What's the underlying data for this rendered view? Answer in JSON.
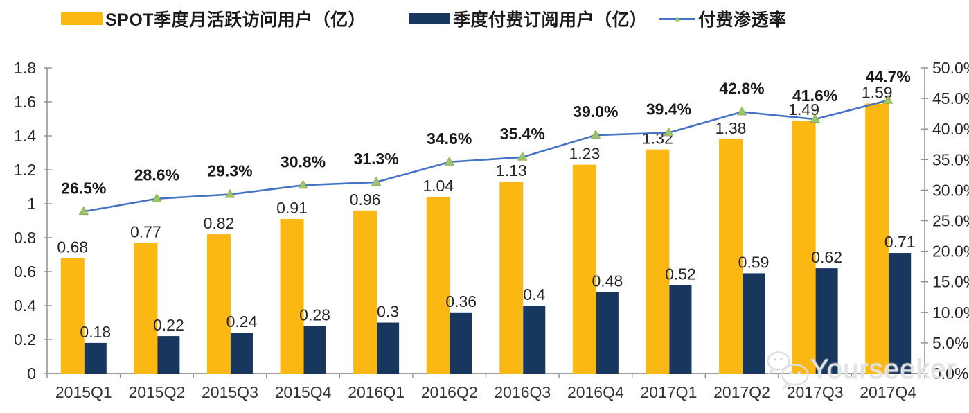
{
  "legend": [
    {
      "label": "SPOT季度月活跃访问用户（亿）",
      "color": "#FBB813",
      "swatch": "bar"
    },
    {
      "label": "季度付费订阅用户（亿）",
      "color": "#17375E",
      "swatch": "bar"
    },
    {
      "label": "付费渗透率",
      "color": "#4472C4",
      "marker_color": "#9DC36B",
      "swatch": "line"
    }
  ],
  "chart_data": {
    "type": "bar",
    "subtype": "combo-bar-line",
    "grid": false,
    "legend_position": "top",
    "categories": [
      "2015Q1",
      "2015Q2",
      "2015Q3",
      "2015Q4",
      "2016Q1",
      "2016Q2",
      "2016Q3",
      "2016Q4",
      "2017Q1",
      "2017Q2",
      "2017Q3",
      "2017Q4"
    ],
    "series": [
      {
        "name": "SPOT季度月活跃访问用户（亿）",
        "type": "bar",
        "axis": "left",
        "color": "#FBB813",
        "values": [
          0.68,
          0.77,
          0.82,
          0.91,
          0.96,
          1.04,
          1.13,
          1.23,
          1.32,
          1.38,
          1.49,
          1.59
        ],
        "labels": [
          "0.68",
          "0.77",
          "0.82",
          "0.91",
          "0.96",
          "1.04",
          "1.13",
          "1.23",
          "1.32",
          "1.38",
          "1.49",
          "1.59"
        ]
      },
      {
        "name": "季度付费订阅用户（亿）",
        "type": "bar",
        "axis": "left",
        "color": "#17375E",
        "values": [
          0.18,
          0.22,
          0.24,
          0.28,
          0.3,
          0.36,
          0.4,
          0.48,
          0.52,
          0.59,
          0.62,
          0.71
        ],
        "labels": [
          "0.18",
          "0.22",
          "0.24",
          "0.28",
          "0.3",
          "0.36",
          "0.4",
          "0.48",
          "0.52",
          "0.59",
          "0.62",
          "0.71"
        ]
      },
      {
        "name": "付费渗透率",
        "type": "line",
        "axis": "right",
        "color": "#4472C4",
        "marker": "triangle",
        "marker_color": "#9DC36B",
        "values": [
          26.5,
          28.6,
          29.3,
          30.8,
          31.3,
          34.6,
          35.4,
          39.0,
          39.4,
          42.8,
          41.6,
          44.7
        ],
        "labels": [
          "26.5%",
          "28.6%",
          "29.3%",
          "30.8%",
          "31.3%",
          "34.6%",
          "35.4%",
          "39.0%",
          "39.4%",
          "42.8%",
          "41.6%",
          "44.7%"
        ]
      }
    ],
    "left_axis": {
      "min": 0,
      "max": 1.8,
      "ticks": [
        {
          "v": 1.8,
          "label": "1.8"
        },
        {
          "v": 1.6,
          "label": "1.6"
        },
        {
          "v": 1.4,
          "label": "1.4"
        },
        {
          "v": 1.2,
          "label": "1.2"
        },
        {
          "v": 1.0,
          "label": "1"
        },
        {
          "v": 0.8,
          "label": "0.8"
        },
        {
          "v": 0.6,
          "label": "0.6"
        },
        {
          "v": 0.4,
          "label": "0.4"
        },
        {
          "v": 0.2,
          "label": "0.2"
        },
        {
          "v": 0.0,
          "label": "0"
        }
      ]
    },
    "right_axis": {
      "min": 0,
      "max": 50,
      "ticks": [
        {
          "v": 50,
          "label": "50.0%"
        },
        {
          "v": 45,
          "label": "45.0%"
        },
        {
          "v": 40,
          "label": "40.0%"
        },
        {
          "v": 35,
          "label": "35.0%"
        },
        {
          "v": 30,
          "label": "30.0%"
        },
        {
          "v": 25,
          "label": "25.0%"
        },
        {
          "v": 20,
          "label": "20.0%"
        },
        {
          "v": 15,
          "label": "15.0%"
        },
        {
          "v": 10,
          "label": "10.0%"
        },
        {
          "v": 5,
          "label": "5.0%"
        },
        {
          "v": 0,
          "label": "0.0%"
        }
      ]
    }
  },
  "watermark": {
    "text": "Yourseeker",
    "icon": "wechat-bubbles-icon"
  },
  "colors": {
    "axis": "#8F8F8F",
    "label_text": "#262626",
    "pct_label_text": "#1a1a1a"
  }
}
